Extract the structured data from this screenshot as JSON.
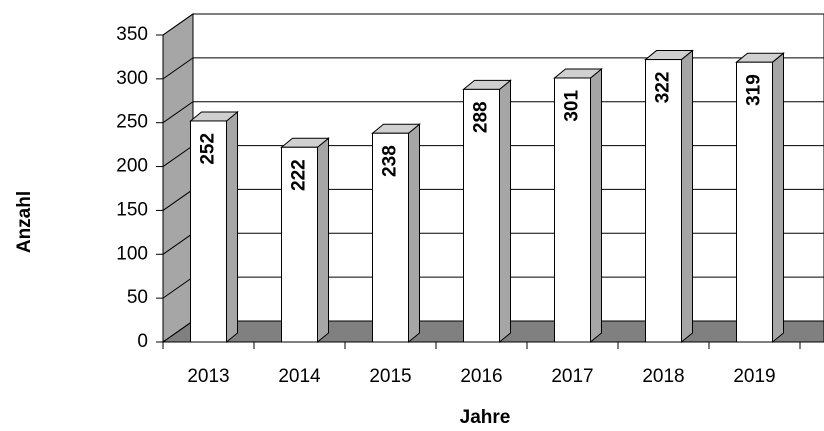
{
  "chart_data": {
    "type": "bar3d",
    "x_label": "Jahre",
    "y_label": "Anzahl",
    "categories": [
      "2013",
      "2014",
      "2015",
      "2016",
      "2017",
      "2018",
      "2019"
    ],
    "values": [
      252,
      222,
      238,
      288,
      301,
      322,
      319
    ],
    "color": "#ffffff",
    "ylim": [
      0,
      350
    ],
    "yticks": [
      0,
      50,
      100,
      150,
      200,
      250,
      300,
      350
    ],
    "grid": true
  }
}
